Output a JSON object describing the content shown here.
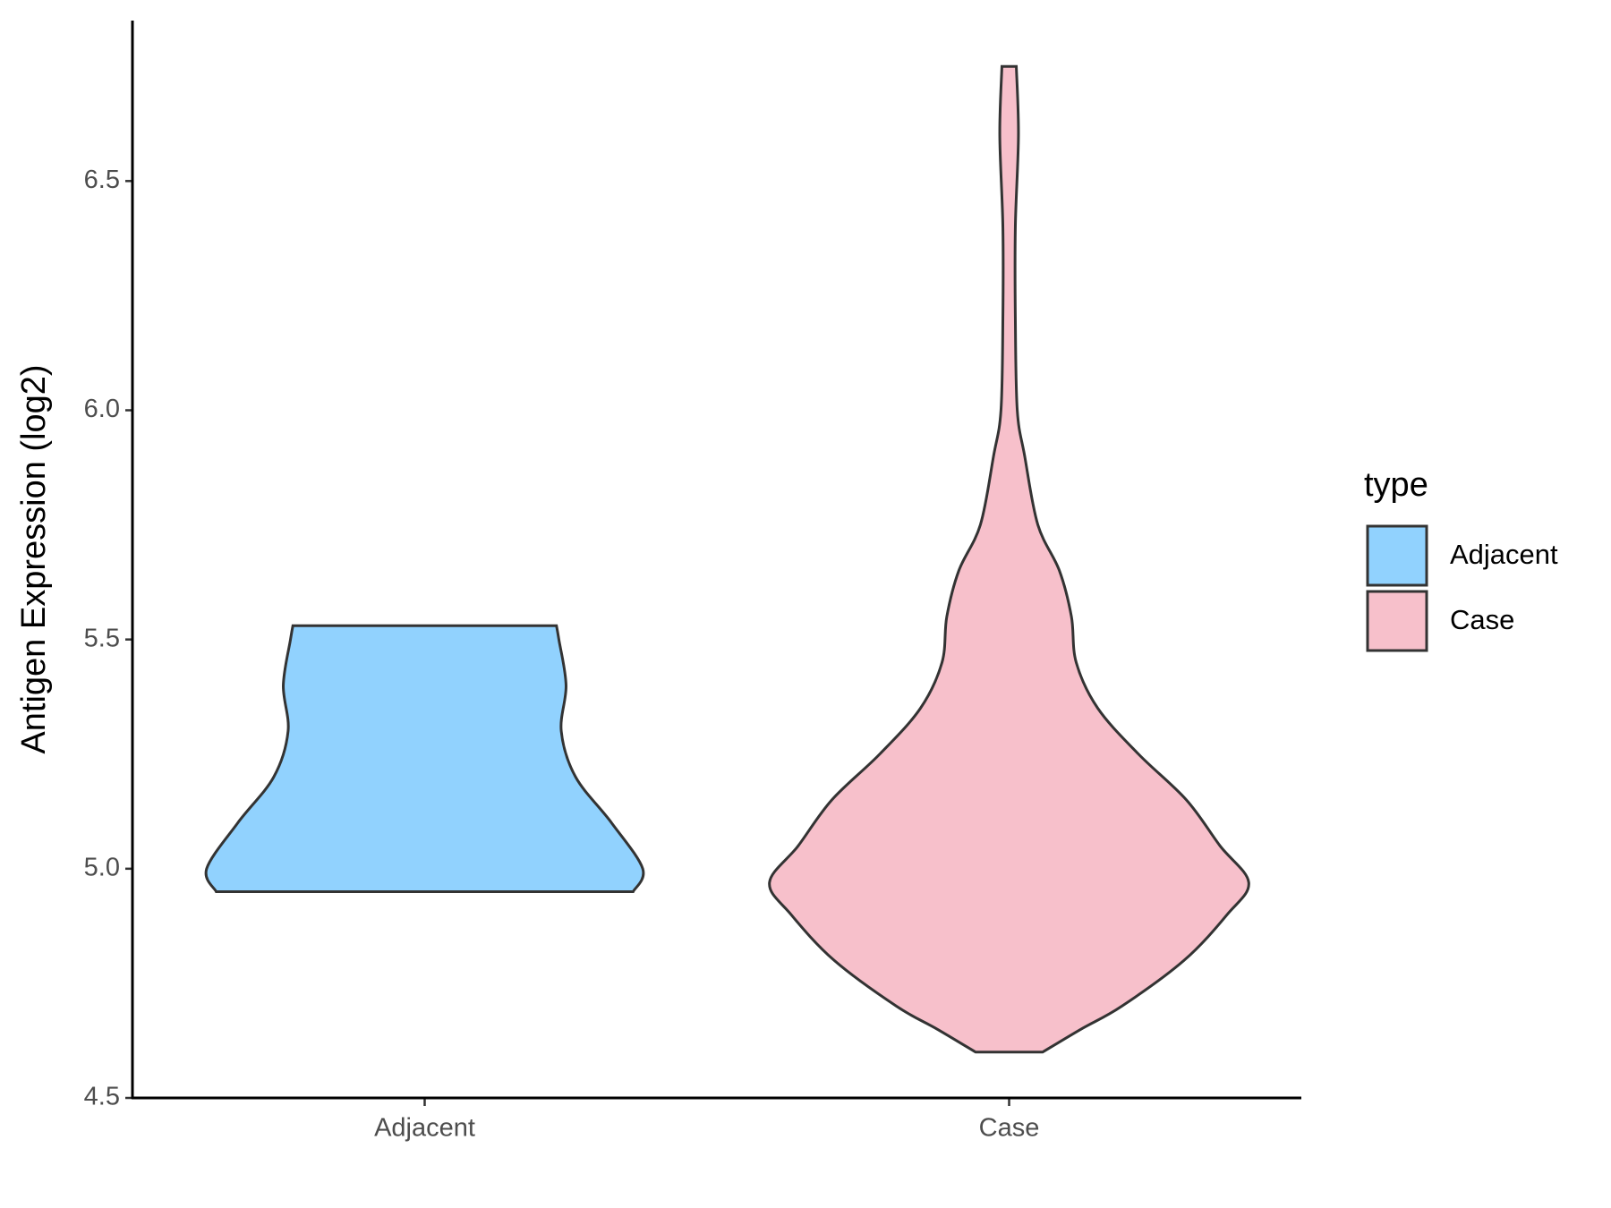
{
  "chart_data": {
    "type": "violin",
    "y_label": "Antigen Expression (log2)",
    "categories": [
      "Adjacent",
      "Case"
    ],
    "legend_title": "type",
    "ylim": [
      4.5,
      6.85
    ],
    "yticks": [
      4.5,
      {
        "value": 5,
        "label": "5.0"
      },
      5.5,
      {
        "value": 6,
        "label": "6.0"
      },
      6.5
    ],
    "series": [
      {
        "name": "Adjacent",
        "color": "#91d2fe",
        "y": [
          4.95,
          5.0,
          5.1,
          5.2,
          5.3,
          5.4,
          5.5,
          5.53
        ],
        "density": [
          0.87,
          0.91,
          0.78,
          0.63,
          0.57,
          0.59,
          0.56,
          0.55
        ]
      },
      {
        "name": "Case",
        "color": "#f7c0cb",
        "y": [
          4.6,
          4.65,
          4.7,
          4.8,
          4.9,
          4.97,
          5.05,
          5.15,
          5.25,
          5.35,
          5.45,
          5.55,
          5.65,
          5.75,
          5.9,
          6.0,
          6.2,
          6.4,
          6.6,
          6.75
        ],
        "density": [
          0.14,
          0.3,
          0.47,
          0.73,
          0.91,
          1.0,
          0.88,
          0.74,
          0.54,
          0.37,
          0.28,
          0.26,
          0.21,
          0.12,
          0.065,
          0.034,
          0.026,
          0.026,
          0.039,
          0.03
        ]
      }
    ]
  }
}
